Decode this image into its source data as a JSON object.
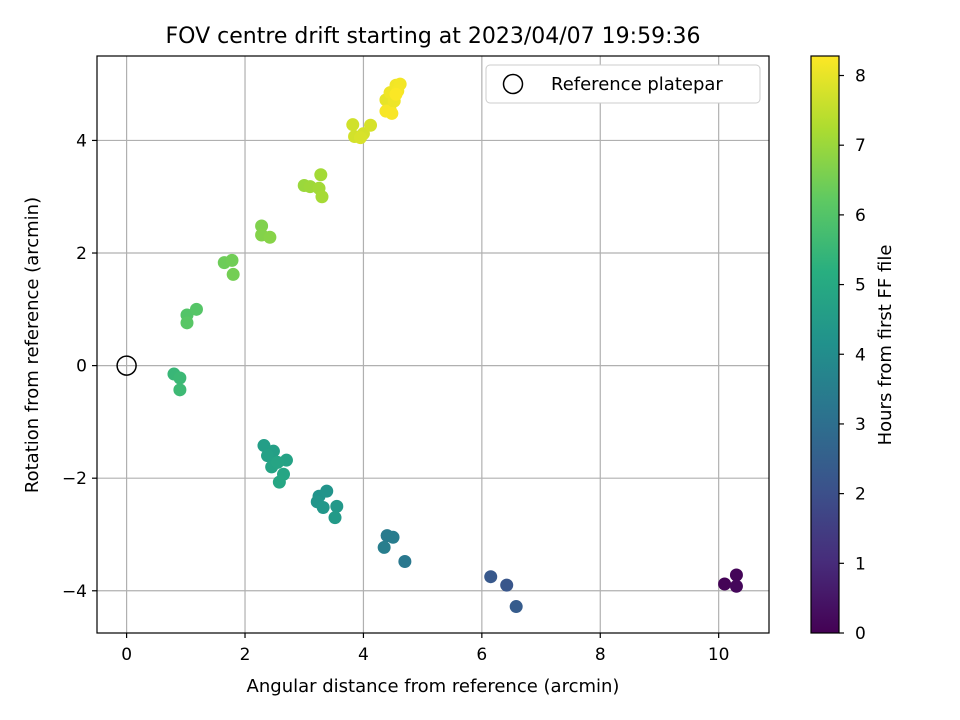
{
  "chart_data": {
    "type": "scatter",
    "title": "FOV centre drift starting at 2023/04/07 19:59:36",
    "xlabel": "Angular distance from reference (arcmin)",
    "ylabel": "Rotation from reference (arcmin)",
    "colorbar_label": "Hours from first FF file",
    "xlim": [
      -0.5,
      10.85
    ],
    "ylim": [
      -4.75,
      5.5
    ],
    "xticks": [
      0,
      2,
      4,
      6,
      8,
      10
    ],
    "yticks": [
      -4,
      -2,
      0,
      2,
      4
    ],
    "colorbar_ticks": [
      0,
      1,
      2,
      3,
      4,
      5,
      6,
      7,
      8
    ],
    "colorbar_range": [
      0,
      8.28
    ],
    "colormap": "viridis",
    "grid": true,
    "legend": {
      "placement": "top-right",
      "entries": [
        "Reference platepar"
      ]
    },
    "reference_point": {
      "x": 0,
      "y": 0,
      "name": "Reference platepar"
    },
    "points": [
      {
        "x": 10.1,
        "y": -3.88,
        "t": 0.05
      },
      {
        "x": 10.3,
        "y": -3.72,
        "t": 0.1
      },
      {
        "x": 10.3,
        "y": -3.92,
        "t": 0.15
      },
      {
        "x": 6.15,
        "y": -3.75,
        "t": 2.3
      },
      {
        "x": 6.42,
        "y": -3.9,
        "t": 2.2
      },
      {
        "x": 6.58,
        "y": -4.28,
        "t": 2.4
      },
      {
        "x": 4.7,
        "y": -3.48,
        "t": 3.3
      },
      {
        "x": 4.4,
        "y": -3.02,
        "t": 3.4
      },
      {
        "x": 4.5,
        "y": -3.05,
        "t": 3.45
      },
      {
        "x": 4.35,
        "y": -3.23,
        "t": 3.5
      },
      {
        "x": 3.25,
        "y": -2.32,
        "t": 4.2
      },
      {
        "x": 3.38,
        "y": -2.23,
        "t": 4.25
      },
      {
        "x": 3.22,
        "y": -2.42,
        "t": 4.3
      },
      {
        "x": 3.32,
        "y": -2.52,
        "t": 4.35
      },
      {
        "x": 3.55,
        "y": -2.5,
        "t": 4.4
      },
      {
        "x": 3.52,
        "y": -2.7,
        "t": 4.45
      },
      {
        "x": 2.32,
        "y": -1.42,
        "t": 4.6
      },
      {
        "x": 2.48,
        "y": -1.52,
        "t": 4.65
      },
      {
        "x": 2.38,
        "y": -1.6,
        "t": 4.7
      },
      {
        "x": 2.7,
        "y": -1.68,
        "t": 4.75
      },
      {
        "x": 2.45,
        "y": -1.8,
        "t": 4.8
      },
      {
        "x": 2.55,
        "y": -1.72,
        "t": 4.82
      },
      {
        "x": 2.65,
        "y": -1.93,
        "t": 4.85
      },
      {
        "x": 2.58,
        "y": -2.07,
        "t": 4.9
      },
      {
        "x": 0.8,
        "y": -0.15,
        "t": 5.5
      },
      {
        "x": 0.9,
        "y": -0.22,
        "t": 5.55
      },
      {
        "x": 0.9,
        "y": -0.43,
        "t": 5.6
      },
      {
        "x": 1.02,
        "y": 0.9,
        "t": 6.0
      },
      {
        "x": 1.18,
        "y": 1.0,
        "t": 6.05
      },
      {
        "x": 1.02,
        "y": 0.76,
        "t": 6.1
      },
      {
        "x": 1.65,
        "y": 1.83,
        "t": 6.4
      },
      {
        "x": 1.78,
        "y": 1.87,
        "t": 6.45
      },
      {
        "x": 1.8,
        "y": 1.62,
        "t": 6.5
      },
      {
        "x": 2.28,
        "y": 2.48,
        "t": 6.65
      },
      {
        "x": 2.28,
        "y": 2.32,
        "t": 6.7
      },
      {
        "x": 2.42,
        "y": 2.28,
        "t": 6.75
      },
      {
        "x": 3.0,
        "y": 3.2,
        "t": 7.0
      },
      {
        "x": 3.1,
        "y": 3.18,
        "t": 7.05
      },
      {
        "x": 3.25,
        "y": 3.15,
        "t": 7.1
      },
      {
        "x": 3.28,
        "y": 3.39,
        "t": 7.12
      },
      {
        "x": 3.3,
        "y": 3.0,
        "t": 7.15
      },
      {
        "x": 3.82,
        "y": 4.28,
        "t": 7.7
      },
      {
        "x": 3.85,
        "y": 4.07,
        "t": 7.72
      },
      {
        "x": 4.0,
        "y": 4.12,
        "t": 7.75
      },
      {
        "x": 4.12,
        "y": 4.27,
        "t": 7.78
      },
      {
        "x": 3.95,
        "y": 4.05,
        "t": 7.8
      },
      {
        "x": 4.38,
        "y": 4.72,
        "t": 8.0
      },
      {
        "x": 4.45,
        "y": 4.55,
        "t": 8.05
      },
      {
        "x": 4.52,
        "y": 4.7,
        "t": 8.08
      },
      {
        "x": 4.45,
        "y": 4.85,
        "t": 8.1
      },
      {
        "x": 4.55,
        "y": 4.98,
        "t": 8.12
      },
      {
        "x": 4.62,
        "y": 5.0,
        "t": 8.15
      },
      {
        "x": 4.58,
        "y": 4.88,
        "t": 8.18
      },
      {
        "x": 4.38,
        "y": 4.52,
        "t": 8.2
      },
      {
        "x": 4.48,
        "y": 4.48,
        "t": 8.22
      },
      {
        "x": 4.55,
        "y": 4.82,
        "t": 8.25
      }
    ]
  }
}
